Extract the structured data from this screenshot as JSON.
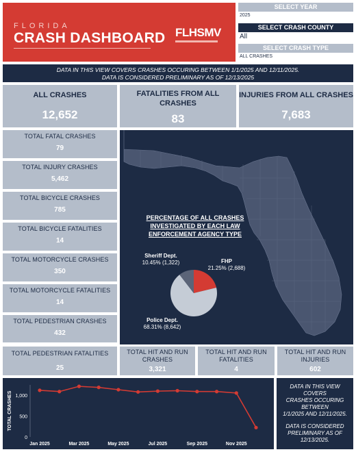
{
  "header": {
    "state_word": "FLORIDA",
    "title": "CRASH DASHBOARD",
    "logo_text": "FLHSMV"
  },
  "filters": {
    "year": {
      "label": "SELECT YEAR",
      "value": "2025"
    },
    "county": {
      "label": "SELECT CRASH COUNTY",
      "value": "All"
    },
    "crash_type": {
      "label": "SELECT CRASH TYPE",
      "value": "ALL CRASHES"
    }
  },
  "notice": {
    "line1": "DATA IN THIS VIEW COVERS CRASHES OCCURING BETWEEN 1/1/2025 AND 12/11/2025.",
    "line2": "DATA IS CONSIDERED PRELIMINARY AS OF 12/13/2025"
  },
  "kpis": {
    "all_crashes": {
      "label": "ALL CRASHES",
      "value": "12,652"
    },
    "fatalities": {
      "label": "FATALITIES FROM ALL CRASHES",
      "value": "83"
    },
    "injuries": {
      "label": "INJURIES FROM ALL CRASHES",
      "value": "7,683"
    }
  },
  "side_stats": [
    {
      "label": "TOTAL FATAL CRASHES",
      "value": "79"
    },
    {
      "label": "TOTAL INJURY CRASHES",
      "value": "5,462"
    },
    {
      "label": "TOTAL BICYCLE CRASHES",
      "value": "785"
    },
    {
      "label": "TOTAL BICYCLE FATALITIES",
      "value": "14"
    },
    {
      "label": "TOTAL MOTORCYCLE CRASHES",
      "value": "350"
    },
    {
      "label": "TOTAL MOTORCYCLE FATALITIES",
      "value": "14"
    },
    {
      "label": "TOTAL PEDESTRIAN CRASHES",
      "value": "432"
    }
  ],
  "bottom_stats": [
    {
      "label": "TOTAL PEDESTRIAN FATALITIES",
      "value": "25"
    },
    {
      "label": "TOTAL HIT AND RUN CRASHES",
      "value": "3,321"
    },
    {
      "label": "TOTAL HIT AND RUN FATALITIES",
      "value": "4"
    },
    {
      "label": "TOTAL HIT AND RUN INJURIES",
      "value": "602"
    }
  ],
  "agency_chart": {
    "title_line1": "PERCENTAGE OF ALL CRASHES",
    "title_line2": "INVESTIGATED BY EACH LAW",
    "title_line3": "ENFORCEMENT AGENCY TYPE"
  },
  "colors": {
    "navy": "#1d2b44",
    "red": "#d43b33",
    "tile": "#b4bdca",
    "map_land": "#4a5670",
    "police": "#c5ccd6",
    "sheriff": "#5b6478",
    "fhp": "#d43b33"
  },
  "chart_data": [
    {
      "type": "pie",
      "title": "PERCENTAGE OF ALL CRASHES INVESTIGATED BY EACH LAW ENFORCEMENT AGENCY TYPE",
      "slices": [
        {
          "name": "FHP",
          "percent": 21.25,
          "count": 2688,
          "label": "21.25% (2,688)"
        },
        {
          "name": "Police Dept.",
          "percent": 68.31,
          "count": 8642,
          "label": "68.31% (8,642)"
        },
        {
          "name": "Sheriff Dept.",
          "percent": 10.45,
          "count": 1322,
          "label": "10.45% (1,322)"
        }
      ]
    },
    {
      "type": "line",
      "ylabel": "TOTAL CRASHES",
      "x": [
        "Jan 2025",
        "Feb 2025",
        "Mar 2025",
        "Apr 2025",
        "May 2025",
        "Jun 2025",
        "Jul 2025",
        "Aug 2025",
        "Sep 2025",
        "Oct 2025",
        "Nov 2025",
        "Dec 2025"
      ],
      "x_tick_labels": [
        "Jan 2025",
        "Mar 2025",
        "May 2025",
        "Jul 2025",
        "Sep 2025",
        "Nov 2025"
      ],
      "y_ticks": [
        "0",
        "500",
        "1,000"
      ],
      "ylim": [
        0,
        1250
      ],
      "values": [
        1120,
        1090,
        1215,
        1190,
        1135,
        1080,
        1100,
        1110,
        1090,
        1090,
        1055,
        225
      ],
      "grid": false
    }
  ],
  "chart_side_note": {
    "line1": "DATA IN THIS VIEW",
    "line2": "COVERS",
    "line3": "CRASHES OCCURING",
    "line4": "BETWEEN",
    "line5": "1/1/2025 AND 12/11/2025.",
    "line6": "DATA IS CONSIDERED",
    "line7": "PRELIMINARY AS OF",
    "line8": "12/13/2025."
  }
}
